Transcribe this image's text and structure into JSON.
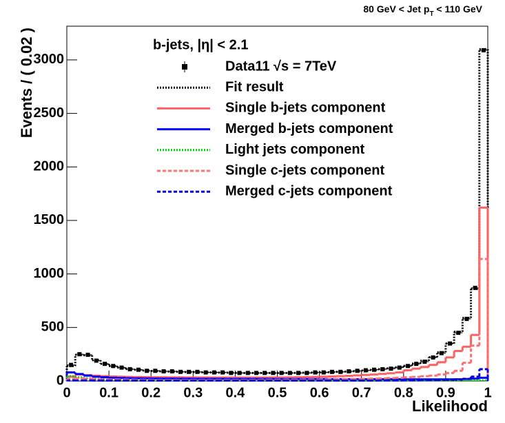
{
  "chart_data": {
    "type": "histogram",
    "annotation": [
      "80 GeV < Jet p",
      "T",
      " < 110 GeV"
    ],
    "legend_title": "b-jets, |η| < 2.1",
    "xlabel": "Likelihood",
    "ylabel": "Events / ( 0.02 )",
    "xlim": [
      0,
      1
    ],
    "ylim": [
      0,
      3315
    ],
    "xticks": [
      0,
      0.1,
      0.2,
      0.3,
      0.4,
      0.5,
      0.6,
      0.7,
      0.8,
      0.9,
      1
    ],
    "yticks": [
      0,
      500,
      1000,
      1500,
      2000,
      2500,
      3000
    ],
    "bins": [
      0,
      0.02,
      0.04,
      0.06,
      0.08,
      0.1,
      0.12,
      0.14,
      0.16,
      0.18,
      0.2,
      0.22,
      0.24,
      0.26,
      0.28,
      0.3,
      0.32,
      0.34,
      0.36,
      0.38,
      0.4,
      0.42,
      0.44,
      0.46,
      0.48,
      0.5,
      0.52,
      0.54,
      0.56,
      0.58,
      0.6,
      0.62,
      0.64,
      0.66,
      0.68,
      0.7,
      0.72,
      0.74,
      0.76,
      0.78,
      0.8,
      0.82,
      0.84,
      0.86,
      0.88,
      0.9,
      0.92,
      0.94,
      0.96,
      0.98,
      1
    ],
    "series": [
      {
        "name": "Data11 √s = 7TeV",
        "color": "#000000",
        "style": "points",
        "values": [
          150,
          250,
          245,
          190,
          160,
          140,
          125,
          110,
          105,
          95,
          95,
          90,
          90,
          85,
          85,
          85,
          80,
          80,
          80,
          75,
          75,
          75,
          75,
          75,
          75,
          75,
          75,
          75,
          75,
          80,
          80,
          85,
          85,
          90,
          95,
          100,
          105,
          110,
          115,
          125,
          140,
          160,
          180,
          220,
          260,
          350,
          450,
          580,
          870,
          3090
        ]
      },
      {
        "name": "Fit result",
        "color": "#000000",
        "style": "dotted",
        "values": [
          140,
          245,
          240,
          195,
          160,
          140,
          125,
          112,
          105,
          97,
          93,
          90,
          88,
          86,
          84,
          83,
          81,
          80,
          78,
          77,
          76,
          75,
          75,
          75,
          75,
          75,
          75,
          76,
          77,
          78,
          80,
          82,
          85,
          88,
          92,
          97,
          103,
          110,
          118,
          128,
          142,
          162,
          188,
          222,
          268,
          350,
          460,
          590,
          860,
          3100
        ]
      },
      {
        "name": "Single b-jets component",
        "color": "#ff6060",
        "style": "solid",
        "values": [
          40,
          60,
          55,
          50,
          45,
          42,
          40,
          38,
          37,
          36,
          35,
          35,
          34,
          34,
          33,
          33,
          33,
          32,
          32,
          32,
          32,
          32,
          32,
          32,
          33,
          33,
          34,
          35,
          36,
          38,
          40,
          42,
          45,
          48,
          52,
          56,
          60,
          66,
          72,
          80,
          100,
          115,
          130,
          150,
          175,
          220,
          280,
          320,
          430,
          1620
        ]
      },
      {
        "name": "Merged b-jets component",
        "color": "#0000ff",
        "style": "solid",
        "values": [
          80,
          65,
          50,
          40,
          35,
          30,
          28,
          26,
          25,
          24,
          23,
          22,
          22,
          21,
          21,
          20,
          20,
          20,
          20,
          19,
          19,
          19,
          19,
          19,
          19,
          18,
          18,
          18,
          18,
          18,
          18,
          17,
          17,
          17,
          17,
          16,
          16,
          16,
          16,
          16,
          15,
          15,
          15,
          15,
          15,
          15,
          16,
          18,
          22,
          30
        ]
      },
      {
        "name": "Light jets component",
        "color": "#00cc00",
        "style": "dotted",
        "values": [
          45,
          35,
          25,
          18,
          14,
          12,
          10,
          9,
          8,
          8,
          7,
          7,
          7,
          6,
          6,
          6,
          6,
          6,
          5,
          5,
          5,
          5,
          5,
          5,
          5,
          5,
          5,
          5,
          5,
          5,
          5,
          5,
          5,
          5,
          5,
          5,
          5,
          5,
          5,
          5,
          5,
          5,
          5,
          5,
          5,
          5,
          5,
          5,
          5,
          5
        ]
      },
      {
        "name": "Single c-jets component",
        "color": "#ff6f6f",
        "style": "dashed",
        "values": [
          20,
          25,
          22,
          18,
          16,
          14,
          13,
          12,
          11,
          11,
          10,
          10,
          10,
          10,
          10,
          10,
          10,
          10,
          10,
          10,
          10,
          10,
          10,
          11,
          11,
          11,
          12,
          12,
          13,
          13,
          14,
          15,
          16,
          17,
          18,
          20,
          22,
          24,
          27,
          30,
          34,
          38,
          44,
          50,
          60,
          75,
          95,
          170,
          330,
          1140
        ]
      },
      {
        "name": "Merged c-jets component",
        "color": "#0000dd",
        "style": "dashed",
        "values": [
          5,
          5,
          5,
          4,
          4,
          4,
          4,
          4,
          4,
          4,
          4,
          4,
          4,
          4,
          4,
          4,
          4,
          4,
          4,
          4,
          4,
          4,
          4,
          4,
          4,
          4,
          4,
          4,
          4,
          4,
          4,
          4,
          4,
          4,
          4,
          4,
          4,
          5,
          5,
          5,
          6,
          6,
          7,
          8,
          9,
          11,
          14,
          20,
          40,
          110
        ]
      }
    ]
  }
}
